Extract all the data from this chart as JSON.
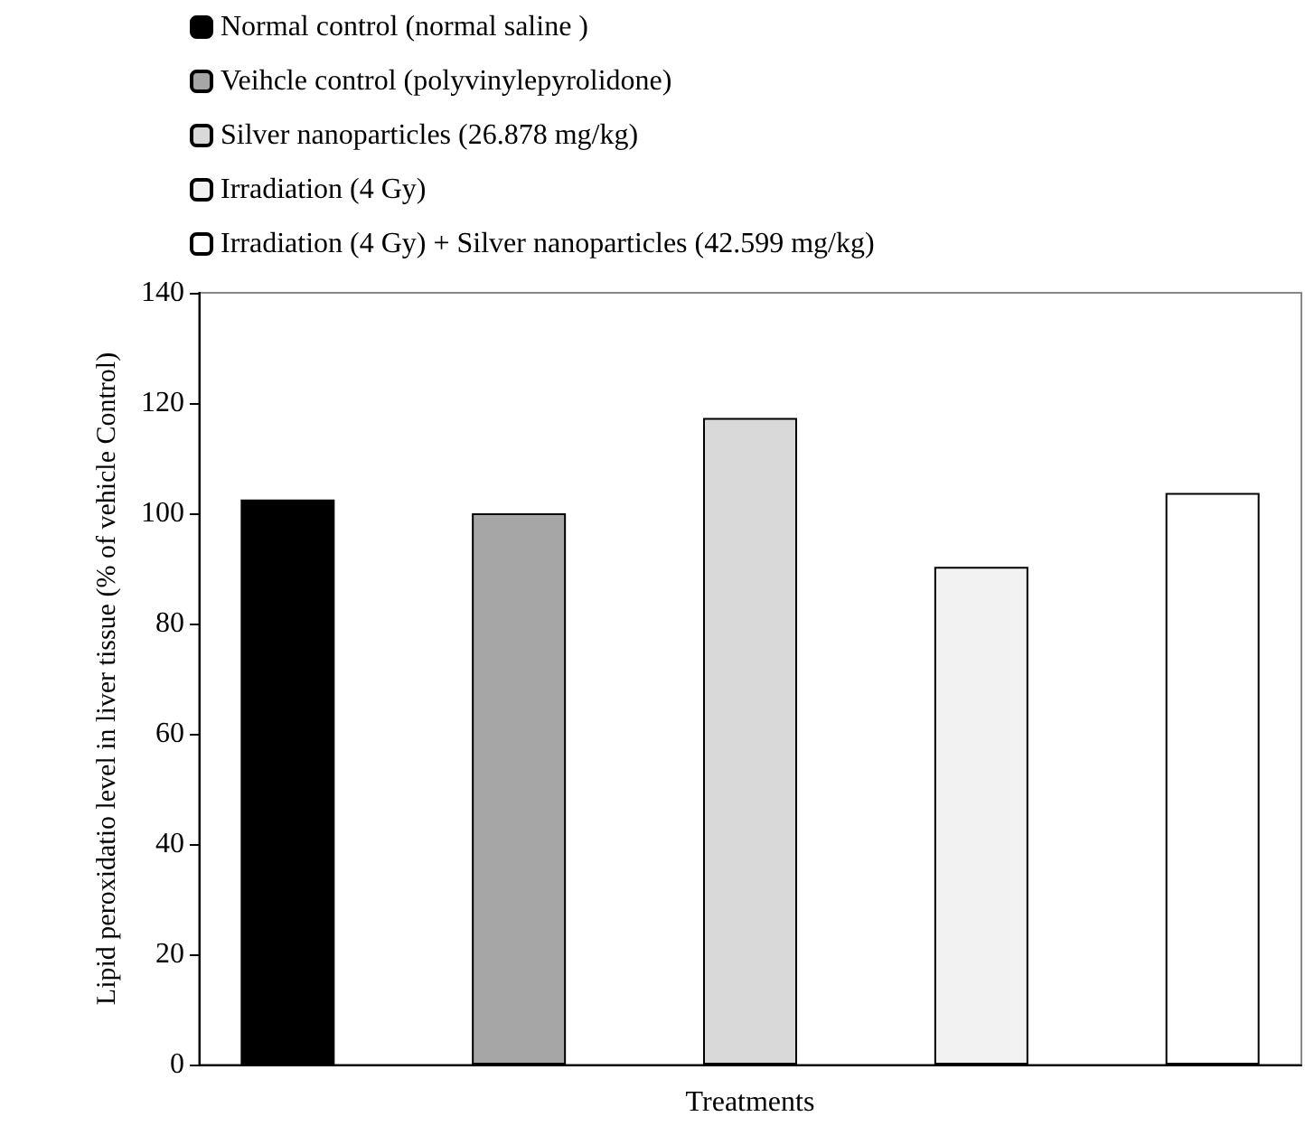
{
  "chart_data": {
    "type": "bar",
    "xlabel": "Treatments",
    "ylabel": "Lipid peroxidatio level in liver tissue (% of vehicle Control)",
    "categories": [
      null
    ],
    "series": [
      {
        "name": "Normal control (normal saline )",
        "color": "#000000",
        "values": [
          102.5
        ]
      },
      {
        "name": "Veihcle control (polyvinylepyrolidone)",
        "color": "#a6a6a6",
        "values": [
          100
        ]
      },
      {
        "name": "Silver nanoparticles (26.878 mg/kg)",
        "color": "#d9d9d9",
        "values": [
          117.3
        ]
      },
      {
        "name": "Irradiation (4 Gy)",
        "color": "#f2f2f2",
        "values": [
          90.3
        ]
      },
      {
        "name": "Irradiation (4 Gy) + Silver nanoparticles (42.599 mg/kg)",
        "color": "#ffffff",
        "values": [
          103.7
        ]
      }
    ],
    "ylim": [
      0,
      140
    ],
    "yticks": [
      0,
      20,
      40,
      60,
      80,
      100,
      120,
      140
    ],
    "grid": false,
    "legend": "top left"
  }
}
